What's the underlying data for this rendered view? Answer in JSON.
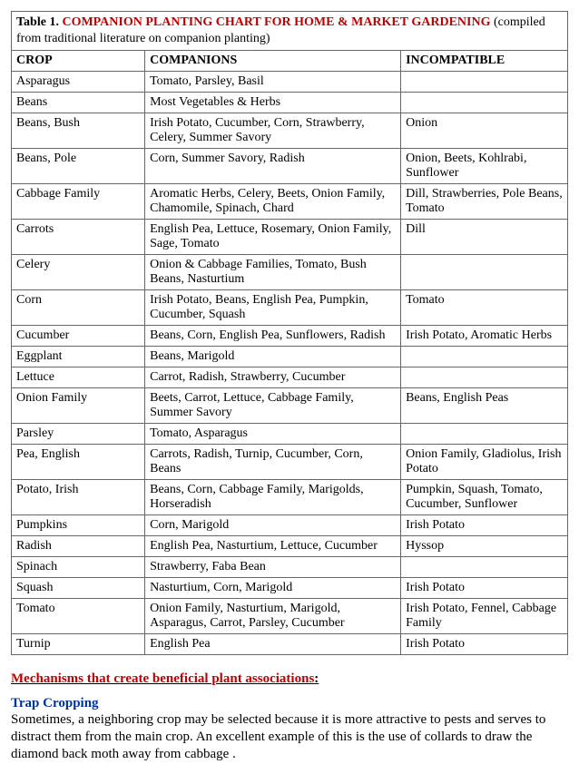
{
  "caption": {
    "label": "Table 1.",
    "title": "COMPANION PLANTING CHART FOR HOME & MARKET GARDENING",
    "suffix": " (compiled from traditional literature on companion planting)"
  },
  "headers": {
    "crop": "CROP",
    "companions": "COMPANIONS",
    "incompatible": "INCOMPATIBLE"
  },
  "rows": [
    {
      "crop": "Asparagus",
      "companions": "Tomato, Parsley, Basil",
      "incompatible": ""
    },
    {
      "crop": "Beans",
      "companions": "Most Vegetables & Herbs",
      "incompatible": ""
    },
    {
      "crop": "Beans, Bush",
      "companions": "Irish Potato, Cucumber, Corn, Strawberry, Celery, Summer Savory",
      "incompatible": "Onion"
    },
    {
      "crop": "Beans, Pole",
      "companions": "Corn, Summer Savory, Radish",
      "incompatible": "Onion, Beets, Kohlrabi, Sunflower"
    },
    {
      "crop": "Cabbage Family",
      "companions": "Aromatic Herbs, Celery, Beets, Onion Family, Chamomile, Spinach, Chard",
      "incompatible": "Dill, Strawberries, Pole Beans, Tomato"
    },
    {
      "crop": "Carrots",
      "companions": "English Pea, Lettuce, Rosemary, Onion Family, Sage, Tomato",
      "incompatible": "Dill"
    },
    {
      "crop": "Celery",
      "companions": "Onion & Cabbage Families, Tomato, Bush Beans, Nasturtium",
      "incompatible": ""
    },
    {
      "crop": "Corn",
      "companions": "Irish Potato, Beans, English Pea, Pumpkin, Cucumber, Squash",
      "incompatible": "Tomato"
    },
    {
      "crop": "Cucumber",
      "companions": "Beans, Corn, English Pea, Sunflowers, Radish",
      "incompatible": "Irish Potato, Aromatic Herbs"
    },
    {
      "crop": "Eggplant",
      "companions": "Beans, Marigold",
      "incompatible": ""
    },
    {
      "crop": "Lettuce",
      "companions": "Carrot, Radish, Strawberry, Cucumber",
      "incompatible": ""
    },
    {
      "crop": "Onion Family",
      "companions": "Beets, Carrot, Lettuce, Cabbage Family, Summer Savory",
      "incompatible": "Beans, English Peas"
    },
    {
      "crop": "Parsley",
      "companions": "Tomato, Asparagus",
      "incompatible": ""
    },
    {
      "crop": "Pea, English",
      "companions": "Carrots, Radish, Turnip, Cucumber, Corn, Beans",
      "incompatible": "Onion Family, Gladiolus, Irish Potato"
    },
    {
      "crop": "Potato, Irish",
      "companions": "Beans, Corn, Cabbage Family, Marigolds, Horseradish",
      "incompatible": "Pumpkin, Squash, Tomato, Cucumber, Sunflower"
    },
    {
      "crop": "Pumpkins",
      "companions": "Corn, Marigold",
      "incompatible": "Irish Potato"
    },
    {
      "crop": "Radish",
      "companions": "English Pea, Nasturtium, Lettuce, Cucumber",
      "incompatible": "Hyssop"
    },
    {
      "crop": "Spinach",
      "companions": "Strawberry, Faba Bean",
      "incompatible": ""
    },
    {
      "crop": "Squash",
      "companions": "Nasturtium, Corn, Marigold",
      "incompatible": "Irish Potato"
    },
    {
      "crop": "Tomato",
      "companions": "Onion Family, Nasturtium, Marigold, Asparagus, Carrot, Parsley, Cucumber",
      "incompatible": "Irish Potato, Fennel, Cabbage Family"
    },
    {
      "crop": "Turnip",
      "companions": "English Pea",
      "incompatible": "Irish Potato"
    }
  ],
  "mechanisms": {
    "heading": "Mechanisms that create beneficial plant associations",
    "colon": ":",
    "trap_heading": "Trap Cropping",
    "trap_body": "Sometimes, a neighboring crop may be selected because it is more attractive to pests and serves to distract them from the main crop. An excellent example of this is the use of collards to draw the diamond back moth away from cabbage ."
  }
}
